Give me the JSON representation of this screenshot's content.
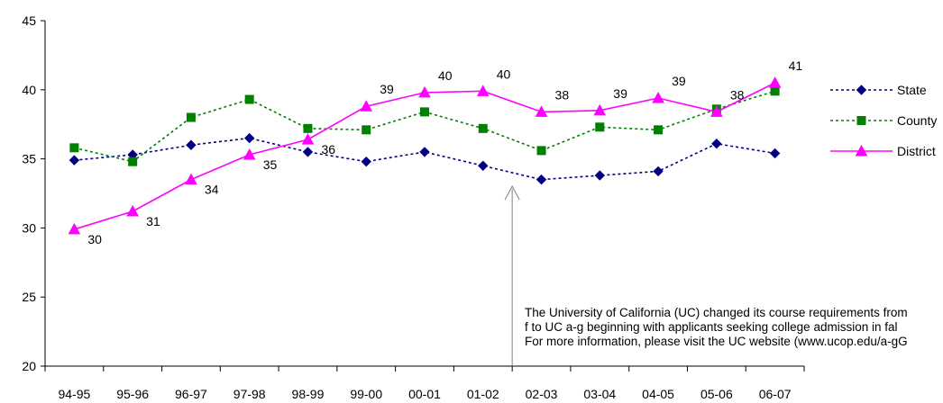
{
  "chart_data": {
    "type": "line",
    "title": "",
    "xlabel": "",
    "ylabel": "",
    "ylim": [
      20,
      45
    ],
    "yticks": [
      20,
      25,
      30,
      35,
      40,
      45
    ],
    "categories": [
      "94-95",
      "95-96",
      "96-97",
      "97-98",
      "98-99",
      "99-00",
      "00-01",
      "01-02",
      "02-03",
      "03-04",
      "04-05",
      "05-06",
      "06-07"
    ],
    "grid": false,
    "legend": "right",
    "series": [
      {
        "name": "State",
        "color": "#000080",
        "style": "dotted",
        "marker": "diamond",
        "values": [
          34.9,
          35.3,
          36.0,
          36.5,
          35.5,
          34.8,
          35.5,
          34.5,
          33.5,
          33.8,
          34.1,
          36.1,
          35.4
        ],
        "labels": []
      },
      {
        "name": "County",
        "color": "#008000",
        "style": "dotted",
        "marker": "square",
        "values": [
          35.8,
          34.8,
          38.0,
          39.3,
          37.2,
          37.1,
          38.4,
          37.2,
          35.6,
          37.3,
          37.1,
          38.6,
          39.9
        ],
        "labels": []
      },
      {
        "name": "District",
        "color": "#ff00ff",
        "style": "solid",
        "marker": "triangle",
        "values": [
          29.9,
          31.2,
          33.5,
          35.3,
          36.4,
          38.8,
          39.8,
          39.9,
          38.4,
          38.5,
          39.4,
          38.4,
          40.5
        ],
        "labels": [
          "30",
          "31",
          "34",
          "35",
          "36",
          "39",
          "40",
          "40",
          "38",
          "39",
          "39",
          "38",
          "41"
        ]
      }
    ],
    "annotation": {
      "lines": [
        "The University of California (UC) changed its course requirements from",
        "f to UC a-g beginning with applicants seeking college admission in fal",
        "For more information, please visit the UC website (www.ucop.edu/a-gG"
      ],
      "arrow_at_category": "02-03"
    }
  }
}
